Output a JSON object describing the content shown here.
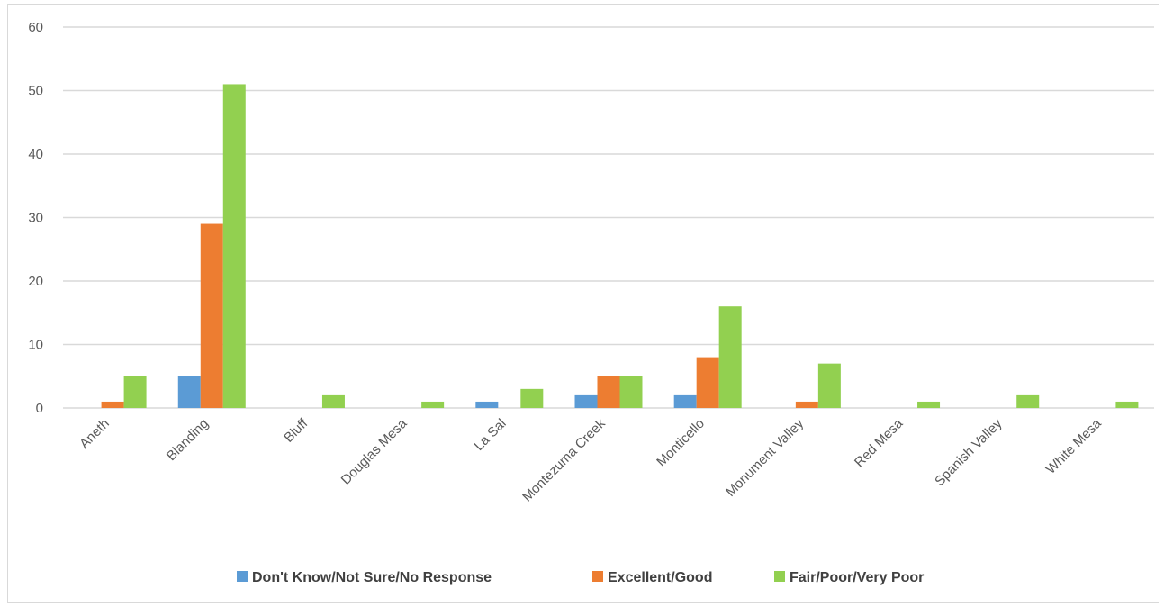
{
  "chart_data": {
    "type": "bar",
    "categories": [
      "Aneth",
      "Blanding",
      "Bluff",
      "Douglas Mesa",
      "La Sal",
      "Montezuma Creek",
      "Monticello",
      "Monument Valley",
      "Red Mesa",
      "Spanish Valley",
      "White Mesa"
    ],
    "series": [
      {
        "name": "Don't Know/Not Sure/No Response",
        "color": "#5b9bd5",
        "values": [
          0,
          5,
          0,
          0,
          1,
          2,
          2,
          0,
          0,
          0,
          0
        ]
      },
      {
        "name": "Excellent/Good",
        "color": "#ed7d31",
        "values": [
          1,
          29,
          0,
          0,
          0,
          5,
          8,
          1,
          0,
          0,
          0
        ]
      },
      {
        "name": "Fair/Poor/Very Poor",
        "color": "#92d050",
        "values": [
          5,
          51,
          2,
          1,
          3,
          5,
          16,
          7,
          1,
          2,
          1
        ]
      }
    ],
    "yticks": [
      "0",
      "10",
      "20",
      "30",
      "40",
      "50",
      "60"
    ],
    "ylim": [
      0,
      60
    ],
    "grid": true,
    "legend_position": "bottom"
  }
}
